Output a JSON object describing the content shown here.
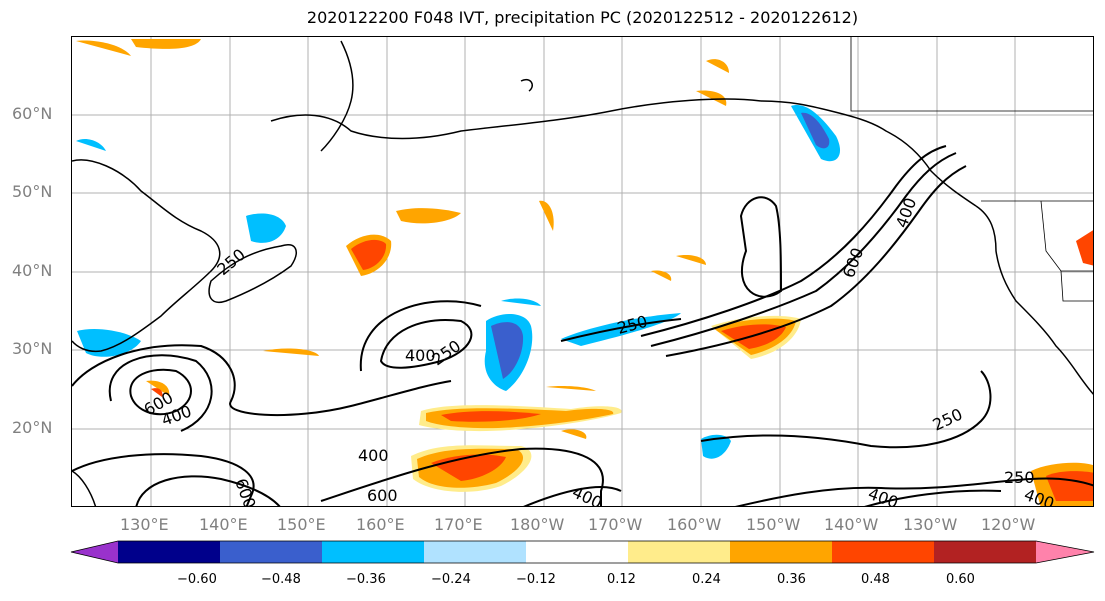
{
  "title": "2020122200 F048 IVT, precipitation PC (2020122512 - 2020122612)",
  "lat_labels": [
    "60°N",
    "50°N",
    "40°N",
    "30°N",
    "20°N"
  ],
  "lon_labels": [
    "130°E",
    "140°E",
    "150°E",
    "160°E",
    "170°E",
    "180°W",
    "170°W",
    "160°W",
    "150°W",
    "140°W",
    "130°W",
    "120°W"
  ],
  "colorbar": {
    "colors": [
      "#9932cc",
      "#00008b",
      "#3a5fcd",
      "#00bfff",
      "#b0e2ff",
      "#ffffff",
      "#ffec8b",
      "#ffa500",
      "#ff4500",
      "#b22222",
      "#ff82ab"
    ],
    "ticks": [
      "−0.60",
      "−0.48",
      "−0.36",
      "−0.24",
      "−0.12",
      "0.12",
      "0.24",
      "0.36",
      "0.48",
      "0.60"
    ]
  },
  "contour_labels": [
    {
      "text": "250"
    },
    {
      "text": "400"
    },
    {
      "text": "250"
    },
    {
      "text": "250"
    },
    {
      "text": "400"
    },
    {
      "text": "600"
    },
    {
      "text": "600"
    },
    {
      "text": "400"
    },
    {
      "text": "400"
    },
    {
      "text": "600"
    },
    {
      "text": "600"
    },
    {
      "text": "400"
    },
    {
      "text": "400"
    },
    {
      "text": "250"
    },
    {
      "text": "250"
    },
    {
      "text": "400"
    }
  ]
}
